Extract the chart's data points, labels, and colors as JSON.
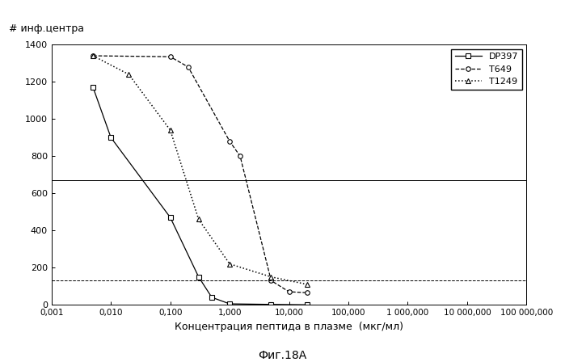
{
  "DP397_x": [
    0.005,
    0.01,
    0.1,
    0.3,
    0.5,
    1.0,
    5.0,
    20.0
  ],
  "DP397_y": [
    1170,
    900,
    470,
    150,
    40,
    5,
    2,
    0
  ],
  "T649_x": [
    0.005,
    0.1,
    0.2,
    1.0,
    1.5,
    5.0,
    10.0,
    20.0
  ],
  "T649_y": [
    1340,
    1335,
    1280,
    880,
    800,
    130,
    70,
    65
  ],
  "T1249_x": [
    0.005,
    0.02,
    0.1,
    0.3,
    1.0,
    5.0,
    20.0
  ],
  "T1249_y": [
    1340,
    1240,
    940,
    460,
    220,
    150,
    110
  ],
  "hline1_y": 670,
  "hline2_y": 130,
  "ylabel": "# инф.центра",
  "xlabel": "Концентрация пептида в плазме  (мкг/мл)",
  "caption": "Фиг.18А",
  "ylim": [
    0,
    1400
  ],
  "xlim_min": 0.001,
  "xlim_max": 100000,
  "xtick_vals": [
    0.001,
    0.01,
    0.1,
    1.0,
    10.0,
    100.0,
    1000.0,
    10000.0,
    100000.0
  ],
  "xtick_labels": [
    "0,001",
    "0,010",
    "0,100",
    "1,000",
    "10,000",
    "100,000",
    "1 000,000",
    "10 000,000",
    "100 000,000"
  ],
  "ytick_vals": [
    0,
    200,
    400,
    600,
    800,
    1000,
    1200,
    1400
  ],
  "legend_DP397": "DP397",
  "legend_T649": "T649",
  "legend_T1249": "T1249",
  "color_all": "black",
  "bg_color": "#ffffff"
}
